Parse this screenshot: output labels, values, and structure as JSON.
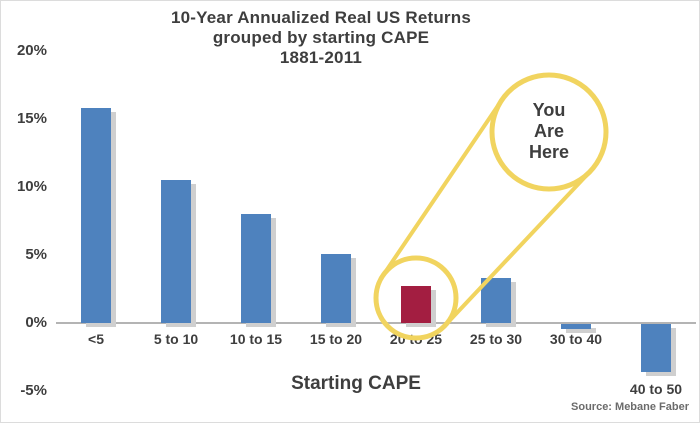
{
  "title_lines": {
    "l1": "10-Year Annualized Real US Returns",
    "l2": "grouped by starting CAPE",
    "l3": "1881-2011"
  },
  "source": "Source: Mebane Faber",
  "annotation": {
    "lines": [
      "You",
      "Are",
      "Here"
    ],
    "target_category": "20 to 25"
  },
  "colors": {
    "bar": "#4e82be",
    "bar_highlight": "#a31e41",
    "bar_shadow": "#cfcfcf",
    "annotation_ring": "#f1d45f",
    "axis_line": "#b4b4b4",
    "text": "#3e3e3e"
  },
  "chart_data": {
    "type": "bar",
    "title": "10-Year Annualized Real US Returns grouped by starting CAPE 1881-2011",
    "xlabel": "Starting CAPE",
    "ylabel": "",
    "categories": [
      "<5",
      "5 to 10",
      "10 to 15",
      "15 to 20",
      "20 to 25",
      "25 to 30",
      "30 to 40",
      "40 to 50"
    ],
    "values": [
      15.8,
      10.5,
      8.0,
      5.1,
      2.7,
      3.3,
      -0.4,
      -3.5
    ],
    "highlight_category": "20 to 25",
    "highlight_value": 2.7,
    "annotation_text": "You Are Here",
    "ylim": [
      -5,
      20
    ],
    "yticks": [
      {
        "value": 20,
        "label": "20%"
      },
      {
        "value": 15,
        "label": "15%"
      },
      {
        "value": 10,
        "label": "10%"
      },
      {
        "value": 5,
        "label": "5%"
      },
      {
        "value": 0,
        "label": "0%"
      },
      {
        "value": -5,
        "label": "-5%"
      }
    ],
    "grid": false,
    "legend": false
  }
}
